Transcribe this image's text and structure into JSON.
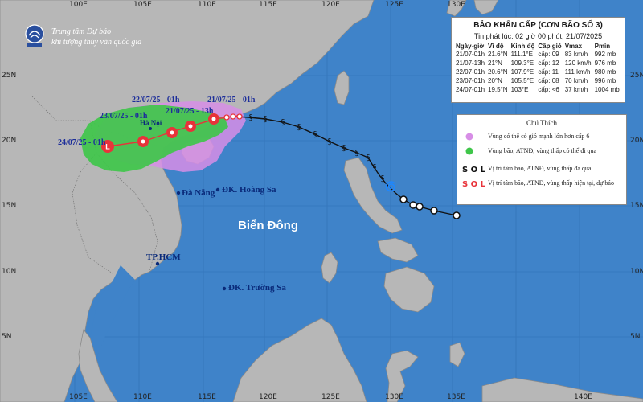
{
  "agency": {
    "line1": "Trung tâm Dự báo",
    "line2": "khí tượng thủy văn quốc gia"
  },
  "bulletin": {
    "title": "BẢO KHẨN CẤP (CƠN BÃO SỐ 3)",
    "issued": "Tin phát lúc: 02 giờ 00 phút, 21/07/2025",
    "columns": [
      "Ngày-giờ",
      "Vĩ độ",
      "Kinh độ",
      "Cấp gió",
      "Vmax",
      "Pmin"
    ],
    "rows": [
      [
        "21/07-01h",
        "21.6°N",
        "111.1°E",
        "cấp: 09",
        "83 km/h",
        "992 mb"
      ],
      [
        "21/07-13h",
        "21°N",
        "109.3°E",
        "cấp: 12",
        "120 km/h",
        "976 mb"
      ],
      [
        "22/07-01h",
        "20.6°N",
        "107.9°E",
        "cấp: 11",
        "111 km/h",
        "980 mb"
      ],
      [
        "23/07-01h",
        "20°N",
        "105.5°E",
        "cấp: 08",
        "70 km/h",
        "996 mb"
      ],
      [
        "24/07-01h",
        "19.5°N",
        "103°E",
        "cấp: <6",
        "37 km/h",
        "1004 mb"
      ]
    ]
  },
  "legend": {
    "title": "Chú Thích",
    "items": [
      "Vùng có thể có gió mạnh lớn hơn cấp 6",
      "Vùng bão, ATNĐ, vùng thấp có thể đi qua",
      "Vị trí tâm bão, ATNĐ, vùng thấp đã qua",
      "Vị trí tâm bão, ATNĐ, vùng thấp hiện tại, dự báo"
    ],
    "symbols_past": "S O L",
    "symbols_forecast": "S O L"
  },
  "places": {
    "hanoi": "Hà Nội",
    "danang": "Đà Nẵng",
    "hoangsa": "ĐK. Hoàng Sa",
    "tphcm": "TP.HCM",
    "truongsa": "ĐK. Trường Sa",
    "sea": "Biển Đông"
  },
  "forecast_labels": {
    "t1": "22/07/25 - 01h",
    "t2": "21/07/25 - 13h",
    "t3": "21/07/25 - 01h",
    "t4": "23/07/25 - 01h",
    "t5": "24/07/25 - 01h"
  },
  "axes": {
    "lon_top": [
      "100E",
      "105E",
      "110E",
      "115E",
      "120E",
      "125E",
      "130E"
    ],
    "lon_bottom": [
      "105E",
      "110E",
      "115E",
      "120E",
      "125E",
      "130E",
      "135E",
      "140E"
    ],
    "lat_left": [
      "25N",
      "20N",
      "15N",
      "10N",
      "5N"
    ],
    "lat_right": [
      "25N",
      "20N",
      "15N",
      "10N",
      "5N"
    ]
  },
  "colors": {
    "sea": "#3f83c9",
    "land": "#b7b7b7",
    "strong_wind_zone": "#d78ee6",
    "danger_zone": "#3fc64a",
    "past_track": "#111111",
    "forecast_track": "#e8333a"
  }
}
